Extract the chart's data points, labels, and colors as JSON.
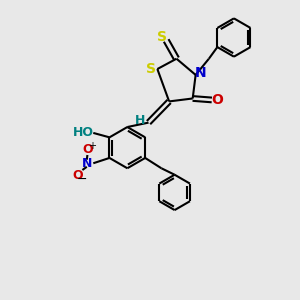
{
  "bg_color": "#e8e8e8",
  "bond_color": "#000000",
  "s_color": "#cccc00",
  "n_color": "#0000cc",
  "o_color": "#cc0000",
  "ho_color": "#008080",
  "lw": 1.5,
  "dlw": 1.5,
  "doffset": 0.06,
  "figsize": [
    3.0,
    3.0
  ],
  "dpi": 100,
  "xlim": [
    0,
    10
  ],
  "ylim": [
    0,
    10
  ]
}
